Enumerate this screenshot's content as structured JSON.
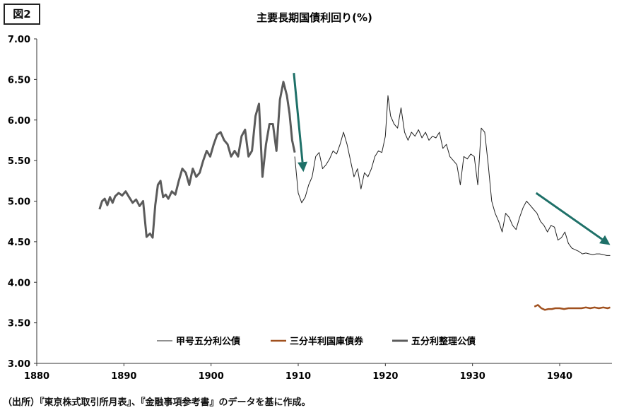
{
  "figure_label": "図2",
  "source_note": "（出所）『東京株式取引所月表』、『金融事項参考書』のデータを基に作成。",
  "chart_data": {
    "type": "line",
    "title": "主要長期国債利回り(%)",
    "xlabel": "",
    "ylabel": "",
    "xlim": [
      1880,
      1946
    ],
    "ylim": [
      3.0,
      7.0
    ],
    "x_ticks": [
      1880,
      1890,
      1900,
      1910,
      1920,
      1930,
      1940
    ],
    "y_ticks": [
      "3.00",
      "3.50",
      "4.00",
      "4.50",
      "5.00",
      "5.50",
      "6.00",
      "6.50",
      "7.00"
    ],
    "grid": false,
    "legend_position": "bottom-center",
    "series": [
      {
        "name": "五分利整理公債",
        "color": "#5b5b5b",
        "x": [
          1887.2,
          1887.5,
          1887.8,
          1888.1,
          1888.4,
          1888.7,
          1889.0,
          1889.4,
          1889.8,
          1890.2,
          1890.6,
          1891.0,
          1891.4,
          1891.8,
          1892.2,
          1892.6,
          1893.0,
          1893.3,
          1893.6,
          1893.9,
          1894.2,
          1894.5,
          1894.8,
          1895.1,
          1895.5,
          1895.9,
          1896.3,
          1896.7,
          1897.1,
          1897.5,
          1897.9,
          1898.3,
          1898.7,
          1899.1,
          1899.5,
          1899.9,
          1900.3,
          1900.7,
          1901.1,
          1901.5,
          1901.9,
          1902.3,
          1902.7,
          1903.1,
          1903.5,
          1903.9,
          1904.3,
          1904.7,
          1905.1,
          1905.5,
          1905.9,
          1906.3,
          1906.7,
          1907.1,
          1907.5,
          1907.9,
          1908.3,
          1908.7,
          1909.0,
          1909.3,
          1909.6
        ],
        "values": [
          4.9,
          5.0,
          5.03,
          4.95,
          5.05,
          4.98,
          5.06,
          5.1,
          5.07,
          5.12,
          5.05,
          4.98,
          5.02,
          4.94,
          5.0,
          4.56,
          4.6,
          4.55,
          4.95,
          5.2,
          5.25,
          5.05,
          5.08,
          5.03,
          5.12,
          5.08,
          5.25,
          5.4,
          5.35,
          5.2,
          5.4,
          5.3,
          5.35,
          5.5,
          5.62,
          5.55,
          5.7,
          5.82,
          5.85,
          5.75,
          5.7,
          5.55,
          5.62,
          5.55,
          5.8,
          5.88,
          5.55,
          5.62,
          6.05,
          6.2,
          5.3,
          5.7,
          5.95,
          5.95,
          5.62,
          6.25,
          6.47,
          6.3,
          6.08,
          5.75,
          5.6
        ]
      },
      {
        "name": "甲号五分利公債",
        "color": "#222222",
        "x": [
          1909.6,
          1910.0,
          1910.4,
          1910.8,
          1911.2,
          1911.6,
          1912.0,
          1912.4,
          1912.8,
          1913.2,
          1913.6,
          1914.0,
          1914.4,
          1914.8,
          1915.2,
          1915.6,
          1916.0,
          1916.4,
          1916.8,
          1917.2,
          1917.6,
          1918.0,
          1918.4,
          1918.8,
          1919.2,
          1919.6,
          1920.0,
          1920.3,
          1920.6,
          1921.0,
          1921.4,
          1921.8,
          1922.2,
          1922.6,
          1923.0,
          1923.4,
          1923.8,
          1924.2,
          1924.6,
          1925.0,
          1925.4,
          1925.8,
          1926.2,
          1926.6,
          1927.0,
          1927.4,
          1927.8,
          1928.2,
          1928.6,
          1929.0,
          1929.4,
          1929.8,
          1930.2,
          1930.6,
          1931.0,
          1931.4,
          1931.8,
          1932.2,
          1932.6,
          1933.0,
          1933.4,
          1933.8,
          1934.2,
          1934.6,
          1935.0,
          1935.4,
          1935.8,
          1936.2,
          1936.6,
          1937.0,
          1937.4,
          1937.8,
          1938.2,
          1938.6,
          1939.0,
          1939.4,
          1939.8,
          1940.2,
          1940.6,
          1941.0,
          1941.4,
          1941.8,
          1942.2,
          1942.6,
          1943.0,
          1943.4,
          1943.8,
          1944.2,
          1944.6,
          1945.0,
          1945.4,
          1945.8
        ],
        "values": [
          5.55,
          5.1,
          4.98,
          5.05,
          5.2,
          5.3,
          5.55,
          5.6,
          5.4,
          5.45,
          5.52,
          5.62,
          5.58,
          5.7,
          5.85,
          5.7,
          5.5,
          5.3,
          5.4,
          5.15,
          5.35,
          5.3,
          5.4,
          5.55,
          5.62,
          5.6,
          5.8,
          6.3,
          6.05,
          5.95,
          5.9,
          6.15,
          5.85,
          5.75,
          5.85,
          5.8,
          5.88,
          5.78,
          5.85,
          5.75,
          5.8,
          5.78,
          5.85,
          5.65,
          5.7,
          5.55,
          5.5,
          5.45,
          5.2,
          5.55,
          5.52,
          5.58,
          5.55,
          5.2,
          5.9,
          5.85,
          5.45,
          5.0,
          4.85,
          4.75,
          4.62,
          4.85,
          4.8,
          4.7,
          4.65,
          4.8,
          4.92,
          5.0,
          4.95,
          4.9,
          4.85,
          4.75,
          4.7,
          4.62,
          4.7,
          4.68,
          4.52,
          4.55,
          4.62,
          4.48,
          4.42,
          4.4,
          4.38,
          4.35,
          4.36,
          4.35,
          4.34,
          4.35,
          4.35,
          4.34,
          4.33,
          4.33
        ]
      },
      {
        "name": "三分半利国庫債券",
        "color": "#a0501e",
        "x": [
          1937.1,
          1937.5,
          1937.9,
          1938.3,
          1938.7,
          1939.1,
          1939.5,
          1940.0,
          1940.5,
          1941.0,
          1941.5,
          1942.0,
          1942.5,
          1943.0,
          1943.5,
          1944.0,
          1944.5,
          1945.0,
          1945.5,
          1945.8
        ],
        "values": [
          3.7,
          3.72,
          3.68,
          3.66,
          3.67,
          3.67,
          3.68,
          3.68,
          3.67,
          3.68,
          3.68,
          3.68,
          3.68,
          3.69,
          3.68,
          3.69,
          3.68,
          3.69,
          3.68,
          3.69
        ]
      }
    ],
    "annotations": [
      {
        "type": "arrow",
        "color": "#1e7068",
        "from": [
          1909.5,
          6.58
        ],
        "to": [
          1910.6,
          5.36
        ]
      },
      {
        "type": "arrow",
        "color": "#1e7068",
        "from": [
          1937.3,
          5.1
        ],
        "to": [
          1945.8,
          4.46
        ]
      }
    ]
  }
}
